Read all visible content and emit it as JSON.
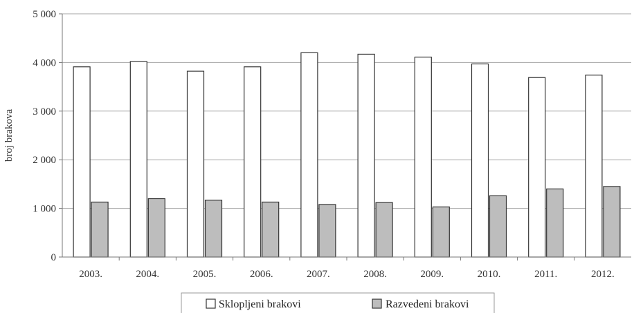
{
  "chart_data": {
    "type": "bar",
    "categories": [
      "2003.",
      "2004.",
      "2005.",
      "2006.",
      "2007.",
      "2008.",
      "2009.",
      "2010.",
      "2011.",
      "2012."
    ],
    "series": [
      {
        "name": "Sklopljeni brakovi",
        "color": "#ffffff",
        "values": [
          3910,
          4020,
          3820,
          3910,
          4200,
          4170,
          4110,
          3970,
          3690,
          3740
        ]
      },
      {
        "name": "Razvedeni brakovi",
        "color": "#bdbdbd",
        "values": [
          1130,
          1200,
          1170,
          1130,
          1080,
          1120,
          1030,
          1260,
          1400,
          1450
        ]
      }
    ],
    "yticks": [
      "0",
      "1 000",
      "2 000",
      "3 000",
      "4 000",
      "5 000"
    ],
    "ylabel": "broj brakova",
    "xlabel": "",
    "ylim": [
      0,
      5000
    ],
    "grid": true,
    "legend_position": "bottom"
  }
}
